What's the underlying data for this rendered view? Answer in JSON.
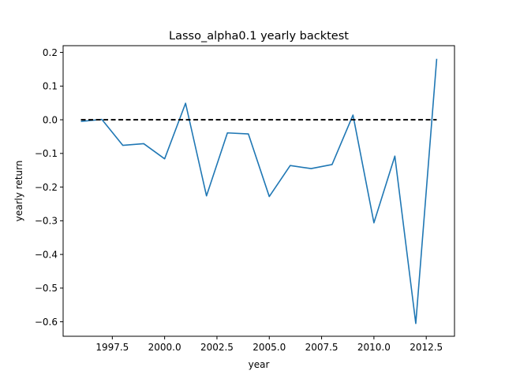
{
  "chart_data": {
    "type": "line",
    "title": "Lasso_alpha0.1 yearly backtest",
    "xlabel": "year",
    "ylabel": "yearly return",
    "xlim": [
      1995.15,
      2013.85
    ],
    "ylim": [
      -0.643,
      0.22
    ],
    "x_ticks": [
      1997.5,
      2000.0,
      2002.5,
      2005.0,
      2007.5,
      2010.0,
      2012.5
    ],
    "x_tick_labels": [
      "1997.5",
      "2000.0",
      "2002.5",
      "2005.0",
      "2007.5",
      "2010.0",
      "2012.5"
    ],
    "y_ticks": [
      -0.6,
      -0.5,
      -0.4,
      -0.3,
      -0.2,
      -0.1,
      0.0,
      0.1,
      0.2
    ],
    "y_tick_labels": [
      "−0.6",
      "−0.5",
      "−0.4",
      "−0.3",
      "−0.2",
      "−0.1",
      "0.0",
      "0.1",
      "0.2"
    ],
    "grid": false,
    "series": [
      {
        "style": "solid",
        "color": "#1f77b4",
        "x": [
          1996,
          1997,
          1998,
          1999,
          2000,
          2001,
          2002,
          2003,
          2004,
          2005,
          2006,
          2007,
          2008,
          2009,
          2010,
          2011,
          2012,
          2013
        ],
        "y": [
          -0.005,
          0.001,
          -0.076,
          -0.071,
          -0.116,
          0.049,
          -0.226,
          -0.039,
          -0.042,
          -0.228,
          -0.136,
          -0.145,
          -0.133,
          0.014,
          -0.306,
          -0.108,
          -0.605,
          0.181
        ]
      },
      {
        "style": "dashed",
        "color": "#000000",
        "x": [
          1996,
          2013
        ],
        "y": [
          0.0,
          0.0
        ]
      }
    ]
  }
}
